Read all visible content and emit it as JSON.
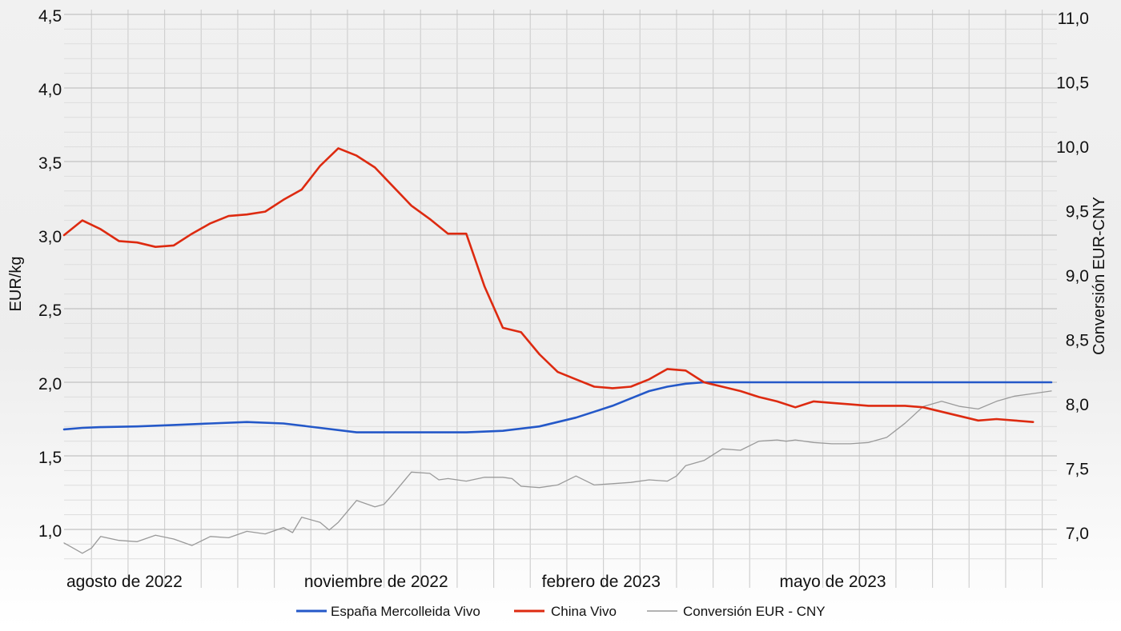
{
  "chart_data": {
    "type": "line",
    "title": "",
    "y_left_label": "EUR/kg",
    "y_right_label": "Conversión EUR-CNY",
    "y_left_ticks": [
      "1,0",
      "1,5",
      "2,0",
      "2,5",
      "3,0",
      "3,5",
      "4,0",
      "4,5"
    ],
    "y_right_ticks": [
      "7,0",
      "7,5",
      "8,0",
      "8,5",
      "9,0",
      "9,5",
      "10,0",
      "10,5",
      "11,0"
    ],
    "y_left_range": [
      0.8,
      4.5
    ],
    "y_right_range": [
      6.6,
      11.0
    ],
    "x_labels": [
      "agosto de 2022",
      "noviembre de 2022",
      "febrero de 2023",
      "mayo de 2023"
    ],
    "x_label_week": [
      0,
      13,
      26,
      39
    ],
    "x_range_weeks": [
      0,
      54
    ],
    "grid": true,
    "legend_position": "bottom",
    "series": [
      {
        "name": "España Mercolleida Vivo",
        "axis": "left",
        "color": "#2458c8",
        "x": [
          0,
          1,
          2,
          4,
          6,
          8,
          10,
          12,
          14,
          16,
          18,
          20,
          22,
          24,
          26,
          27,
          28,
          29,
          30,
          31,
          32,
          33,
          34,
          35,
          36,
          37,
          38,
          39,
          40,
          42,
          44,
          46,
          48,
          50,
          52,
          54
        ],
        "y": [
          1.68,
          1.69,
          1.695,
          1.7,
          1.71,
          1.72,
          1.73,
          1.72,
          1.69,
          1.66,
          1.66,
          1.66,
          1.66,
          1.67,
          1.7,
          1.73,
          1.76,
          1.8,
          1.84,
          1.89,
          1.94,
          1.97,
          1.99,
          2.0,
          2.0,
          2.0,
          2.0,
          2.0,
          2.0,
          2.0,
          2.0,
          2.0,
          2.0,
          2.0,
          2.0,
          2.0
        ]
      },
      {
        "name": "China Vivo",
        "axis": "left",
        "color": "#dd2a10",
        "x": [
          0,
          1,
          2,
          3,
          4,
          5,
          6,
          7,
          8,
          9,
          10,
          11,
          12,
          13,
          14,
          15,
          16,
          17,
          18,
          19,
          20,
          21,
          22,
          23,
          24,
          25,
          26,
          27,
          28,
          29,
          30,
          31,
          32,
          33,
          34,
          35,
          36,
          37,
          38,
          39,
          40,
          41,
          42,
          43,
          44,
          45,
          46,
          47,
          48,
          49,
          50,
          51,
          52,
          53
        ],
        "y": [
          3.0,
          3.1,
          3.04,
          2.96,
          2.95,
          2.92,
          2.93,
          3.01,
          3.08,
          3.13,
          3.14,
          3.16,
          3.24,
          3.31,
          3.47,
          3.59,
          3.54,
          3.46,
          3.33,
          3.2,
          3.11,
          3.01,
          3.01,
          2.65,
          2.37,
          2.34,
          2.19,
          2.07,
          2.02,
          1.97,
          1.96,
          1.97,
          2.02,
          2.09,
          2.08,
          2.0,
          1.97,
          1.94,
          1.9,
          1.87,
          1.83,
          1.87,
          1.86,
          1.85,
          1.84,
          1.84,
          1.84,
          1.83,
          1.8,
          1.77,
          1.74,
          1.75,
          1.74,
          1.73
        ]
      },
      {
        "name": "Conversión EUR - CNY",
        "axis": "right",
        "color": "#9a9a9a",
        "x": [
          0,
          0.5,
          1,
          1.5,
          2,
          3,
          4,
          5,
          6,
          7,
          8,
          9,
          10,
          11,
          12,
          12.5,
          13,
          14,
          14.5,
          15,
          16,
          17,
          17.5,
          18,
          19,
          20,
          20.5,
          21,
          22,
          23,
          24,
          24.5,
          25,
          26,
          27,
          28,
          29,
          30,
          31,
          32,
          33,
          33.5,
          34,
          35,
          36,
          37,
          38,
          39,
          39.5,
          40,
          41,
          42,
          43,
          44,
          45,
          46,
          47,
          48,
          49,
          50,
          51,
          52,
          53,
          54
        ],
        "y": [
          6.92,
          6.88,
          6.84,
          6.88,
          6.97,
          6.94,
          6.93,
          6.98,
          6.95,
          6.9,
          6.97,
          6.96,
          7.01,
          6.99,
          7.04,
          7.0,
          7.12,
          7.08,
          7.02,
          7.08,
          7.25,
          7.2,
          7.22,
          7.3,
          7.47,
          7.46,
          7.41,
          7.42,
          7.4,
          7.43,
          7.43,
          7.42,
          7.36,
          7.35,
          7.37,
          7.44,
          7.37,
          7.38,
          7.39,
          7.41,
          7.4,
          7.44,
          7.52,
          7.56,
          7.65,
          7.64,
          7.71,
          7.72,
          7.71,
          7.72,
          7.7,
          7.69,
          7.69,
          7.7,
          7.74,
          7.85,
          7.98,
          8.02,
          7.98,
          7.96,
          8.02,
          8.06,
          8.08,
          8.1
        ]
      }
    ]
  }
}
